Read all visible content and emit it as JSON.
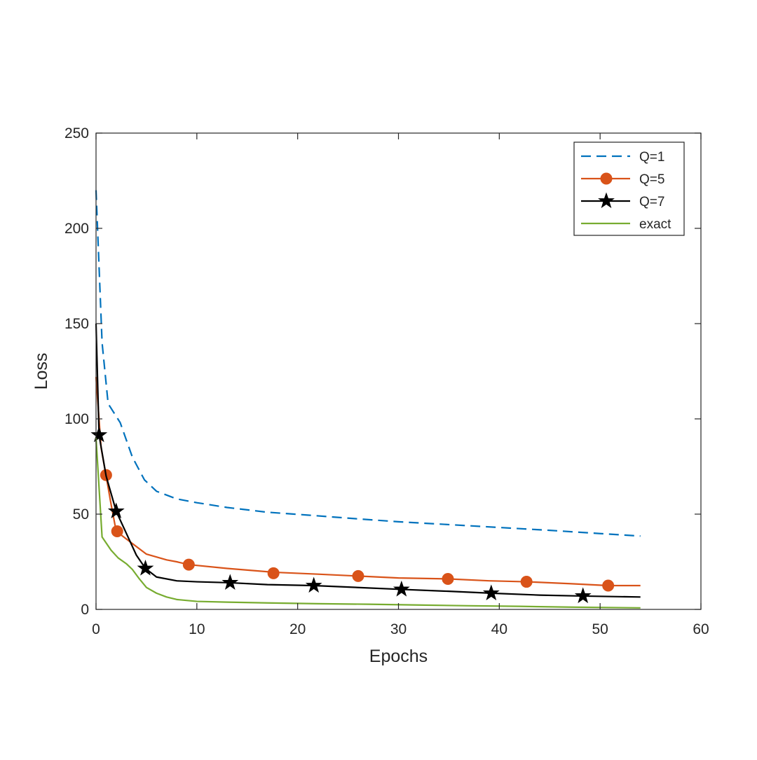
{
  "chart_data": {
    "type": "line",
    "title": "",
    "xlabel": "Epochs",
    "ylabel": "Loss",
    "xlim": [
      0,
      60
    ],
    "ylim": [
      0,
      250
    ],
    "xticks": [
      0,
      10,
      20,
      30,
      40,
      50,
      60
    ],
    "yticks": [
      0,
      50,
      100,
      150,
      200,
      250
    ],
    "xtick_labels": [
      "0",
      "10",
      "20",
      "30",
      "40",
      "50",
      "60"
    ],
    "ytick_labels": [
      "0",
      "50",
      "100",
      "150",
      "200",
      "250"
    ],
    "grid": false,
    "legend_position": "top-right",
    "series": [
      {
        "name": "Q=1",
        "color": "#0072BD",
        "line_style": "dashed",
        "marker": "none",
        "x": [
          0,
          0.6,
          1.2,
          2.4,
          3.6,
          4.8,
          6,
          8,
          10,
          13,
          17,
          21,
          26,
          30,
          35,
          40,
          45,
          50,
          54
        ],
        "y": [
          220,
          140,
          108,
          98,
          80,
          68,
          62,
          58,
          56,
          53.5,
          51,
          49.5,
          47.5,
          46,
          44.5,
          43,
          41.5,
          39.8,
          38.5
        ],
        "marker_points": []
      },
      {
        "name": "Q=5",
        "color": "#D95319",
        "line_style": "solid",
        "marker": "circle",
        "x": [
          0,
          0.5,
          1,
          1.5,
          2,
          2.5,
          3,
          4,
          5,
          6,
          7,
          8,
          9.2,
          13,
          17.6,
          22,
          26,
          30,
          35,
          39,
          42.7,
          47,
          50.8,
          54
        ],
        "y": [
          122,
          85,
          70,
          55,
          41,
          39,
          37,
          33,
          29,
          27.5,
          26,
          25,
          23.5,
          21.5,
          19.5,
          18.5,
          17.5,
          16.5,
          16,
          15,
          14.5,
          13.5,
          12.5,
          12.5
        ],
        "marker_points": [
          [
            1,
            70.5
          ],
          [
            2.1,
            41
          ],
          [
            9.2,
            23.5
          ],
          [
            17.6,
            19
          ],
          [
            26,
            17.5
          ],
          [
            34.9,
            16
          ],
          [
            42.7,
            14.5
          ],
          [
            50.8,
            12.5
          ]
        ]
      },
      {
        "name": "Q=7",
        "color": "#000000",
        "line_style": "solid",
        "marker": "star",
        "x": [
          0,
          0.3,
          1,
          2,
          3,
          4,
          4.9,
          6,
          8,
          10,
          13.3,
          17,
          21.6,
          26,
          30.3,
          35,
          39.2,
          44,
          48.3,
          54
        ],
        "y": [
          150,
          91.5,
          70,
          51.5,
          40,
          28.5,
          21.5,
          17,
          15,
          14.5,
          14,
          13,
          12.5,
          11.5,
          10.5,
          9.5,
          8.5,
          7.5,
          7,
          6.5
        ],
        "marker_points": [
          [
            0.3,
            91.5
          ],
          [
            2,
            51.5
          ],
          [
            4.9,
            21.5
          ],
          [
            13.3,
            14
          ],
          [
            21.6,
            12.5
          ],
          [
            30.3,
            10.5
          ],
          [
            39.2,
            8.5
          ],
          [
            48.3,
            7
          ]
        ]
      },
      {
        "name": "exact",
        "color": "#77AC30",
        "line_style": "solid",
        "marker": "none",
        "x": [
          0,
          0.6,
          1.5,
          2.2,
          3,
          3.6,
          4.3,
          5,
          6,
          7,
          8,
          10,
          13,
          17,
          22,
          27,
          32,
          37,
          42,
          47,
          54
        ],
        "y": [
          90,
          38,
          31,
          27,
          24,
          21,
          16,
          11.5,
          8.5,
          6.5,
          5.2,
          4.2,
          3.8,
          3.4,
          3,
          2.7,
          2.3,
          1.9,
          1.6,
          1.2,
          0.8
        ],
        "marker_points": []
      }
    ]
  }
}
